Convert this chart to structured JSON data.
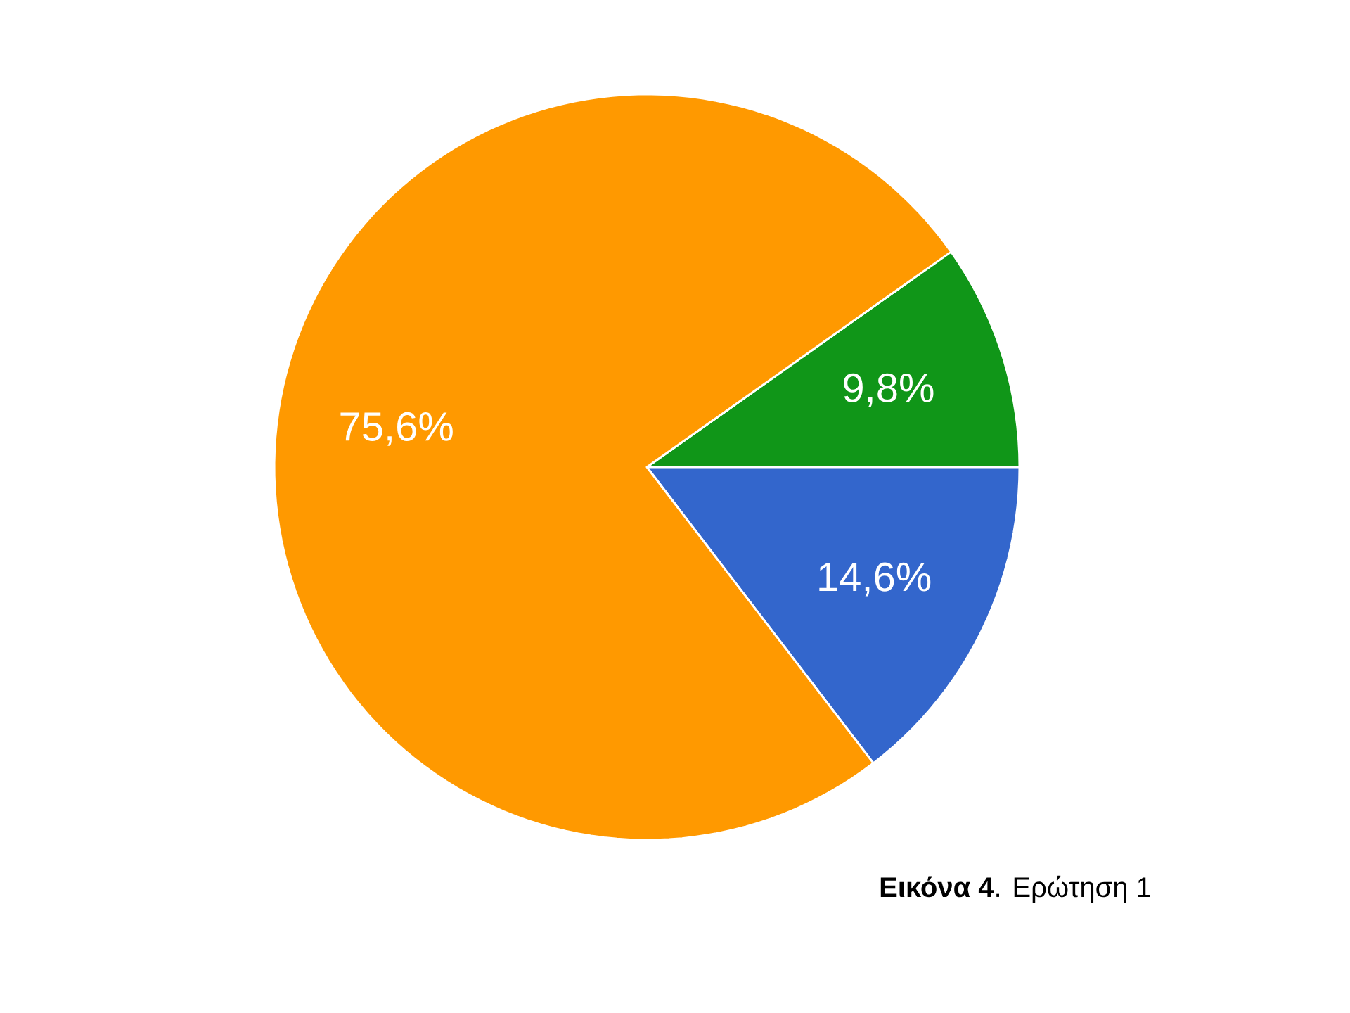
{
  "chart_data": {
    "type": "pie",
    "categories": [
      null,
      null,
      null
    ],
    "values": [
      9.8,
      14.6,
      75.6
    ],
    "colors": [
      "#109618",
      "#3366cc",
      "#ff9900"
    ],
    "value_labels": [
      "9,8%",
      "14,6%",
      "75,6%"
    ],
    "annotations": [
      "**Εικόνα 4**. Ερώτηση 1"
    ]
  }
}
